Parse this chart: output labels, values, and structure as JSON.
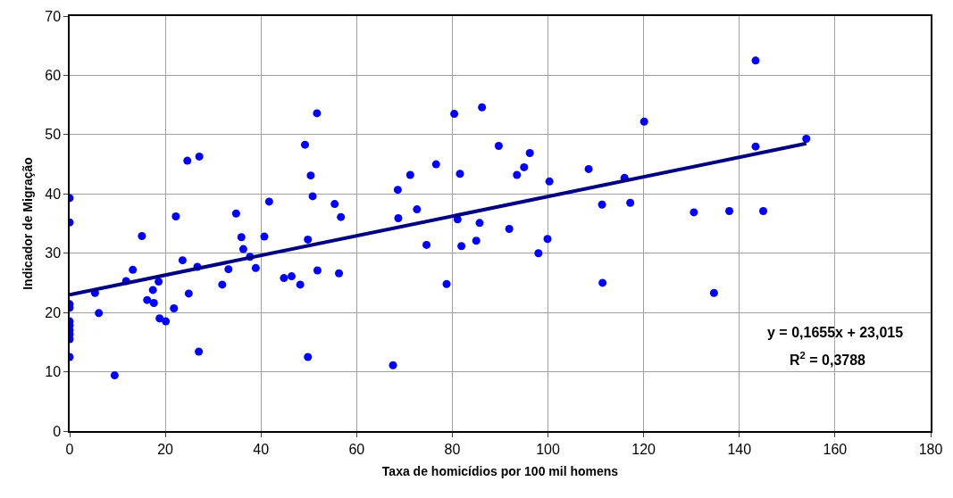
{
  "chart_data": {
    "type": "scatter",
    "xlabel": "Taxa de homicídios por 100 mil homens",
    "ylabel": "Indicador de Migração",
    "xlim": [
      0,
      180
    ],
    "xticks": [
      0,
      20,
      40,
      60,
      80,
      100,
      120,
      140,
      160,
      180
    ],
    "ylim": [
      0,
      70
    ],
    "yticks": [
      0,
      10,
      20,
      30,
      40,
      50,
      60,
      70
    ],
    "grid": true,
    "marker": "circle",
    "annotations": [
      "y = 0,1655x + 23,015",
      "R$^{2}$ = 0,3788"
    ],
    "series": [
      {
        "color": "#0000ff",
        "x": [
          0,
          0,
          0,
          0,
          0,
          0,
          0,
          0,
          0,
          0,
          5.3,
          6.1,
          9.4,
          11.8,
          13.2,
          15.1,
          16.2,
          17.4,
          17.6,
          18.6,
          18.8,
          20.1,
          21.8,
          22.2,
          23.6,
          24.6,
          24.9,
          26.7,
          27.0,
          27.1,
          31.9,
          33.2,
          34.8,
          35.9,
          36.3,
          37.7,
          38.9,
          40.7,
          41.7,
          44.8,
          46.4,
          48.2,
          49.2,
          49.8,
          49.8,
          50.4,
          50.8,
          51.7,
          51.8,
          55.4,
          56.3,
          56.7,
          67.6,
          68.6,
          68.7,
          71.2,
          72.6,
          74.6,
          76.6,
          78.8,
          80.4,
          81.1,
          81.6,
          81.9,
          85.0,
          85.7,
          86.2,
          89.7,
          91.9,
          93.5,
          95.0,
          96.2,
          98.0,
          99.9,
          100.3,
          108.5,
          111.3,
          111.4,
          116.0,
          117.2,
          120.1,
          130.5,
          134.7,
          137.9,
          143.4,
          143.4,
          145.0,
          154.0
        ],
        "values": [
          39.3,
          35.2,
          21.4,
          20.8,
          18.5,
          17.8,
          17.0,
          16.3,
          15.5,
          12.5,
          23.3,
          19.9,
          9.4,
          25.3,
          27.2,
          32.9,
          22.1,
          23.8,
          21.6,
          25.2,
          19.0,
          18.5,
          20.7,
          36.2,
          28.8,
          45.6,
          23.2,
          27.7,
          13.4,
          46.3,
          24.7,
          27.3,
          36.7,
          32.7,
          30.7,
          29.4,
          27.5,
          32.8,
          38.7,
          25.8,
          26.1,
          24.7,
          48.3,
          32.3,
          12.5,
          43.1,
          39.6,
          53.6,
          27.1,
          38.3,
          26.6,
          36.1,
          11.1,
          40.7,
          35.9,
          43.2,
          37.4,
          31.4,
          45.0,
          24.8,
          53.5,
          35.7,
          43.4,
          31.2,
          32.1,
          35.1,
          54.6,
          48.1,
          34.1,
          43.2,
          44.5,
          46.9,
          30.0,
          32.4,
          42.1,
          44.2,
          38.2,
          25.0,
          42.7,
          38.5,
          52.2,
          36.9,
          23.3,
          37.1,
          62.5,
          48.0,
          37.1,
          49.3
        ]
      },
      {
        "type": "line",
        "color": "#000080",
        "x": [
          0,
          154
        ],
        "values": [
          23.0,
          48.5
        ],
        "marker": "none",
        "line_style": "solid"
      }
    ]
  }
}
